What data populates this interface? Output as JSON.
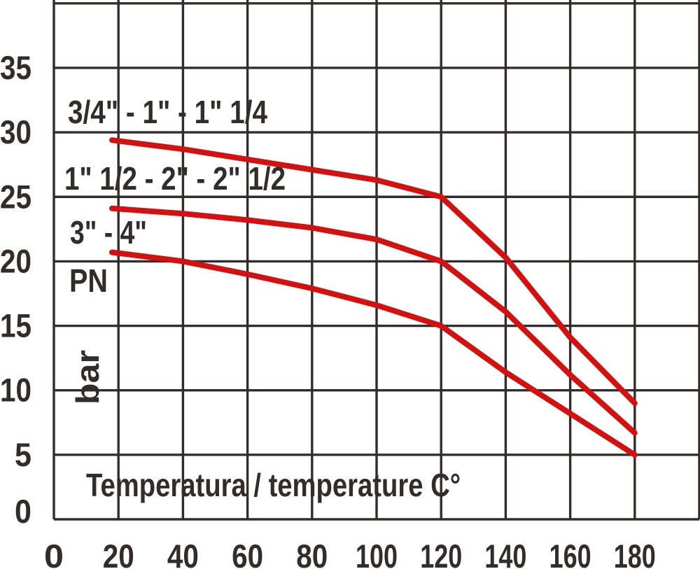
{
  "labels": {
    "x_axis_title": "Temperatura / temperature C°",
    "pn_unit": "PN",
    "bar_unit": "bar"
  },
  "colors": {
    "background": "#ffffff",
    "grid": "#332c2c",
    "text": "#332c2c",
    "curve_red": "#d31111"
  },
  "chart_data": {
    "type": "line",
    "xlabel": "Temperatura / temperature C°",
    "ylabel": "PN bar",
    "xlim": [
      0,
      200
    ],
    "ylim": [
      0,
      40
    ],
    "grid": true,
    "legend_position": "labels-on-chart",
    "x_ticks": [
      0,
      20,
      40,
      60,
      80,
      100,
      120,
      140,
      160,
      180
    ],
    "y_ticks": [
      0,
      5,
      10,
      15,
      20,
      25,
      30,
      35
    ],
    "series": [
      {
        "name": "3/4\" - 1\" - 1\" 1/4",
        "color": "#d31111",
        "points": [
          [
            18,
            29.4
          ],
          [
            40,
            28.7
          ],
          [
            60,
            27.9
          ],
          [
            80,
            27.1
          ],
          [
            100,
            26.3
          ],
          [
            120,
            25
          ],
          [
            140,
            20.3
          ],
          [
            160,
            14.1
          ],
          [
            180,
            9
          ]
        ]
      },
      {
        "name": "1\" 1/2 - 2\" - 2\" 1/2",
        "color": "#d31111",
        "points": [
          [
            18,
            24.1
          ],
          [
            40,
            23.7
          ],
          [
            60,
            23.2
          ],
          [
            80,
            22.6
          ],
          [
            100,
            21.7
          ],
          [
            120,
            20
          ],
          [
            140,
            16.1
          ],
          [
            160,
            11.2
          ],
          [
            180,
            6.7
          ]
        ]
      },
      {
        "name": "3\" - 4\"",
        "color": "#d31111",
        "points": [
          [
            18,
            20.7
          ],
          [
            40,
            20
          ],
          [
            60,
            19
          ],
          [
            80,
            17.9
          ],
          [
            100,
            16.6
          ],
          [
            120,
            15
          ],
          [
            140,
            11.4
          ],
          [
            160,
            8.2
          ],
          [
            180,
            5
          ]
        ]
      }
    ]
  }
}
